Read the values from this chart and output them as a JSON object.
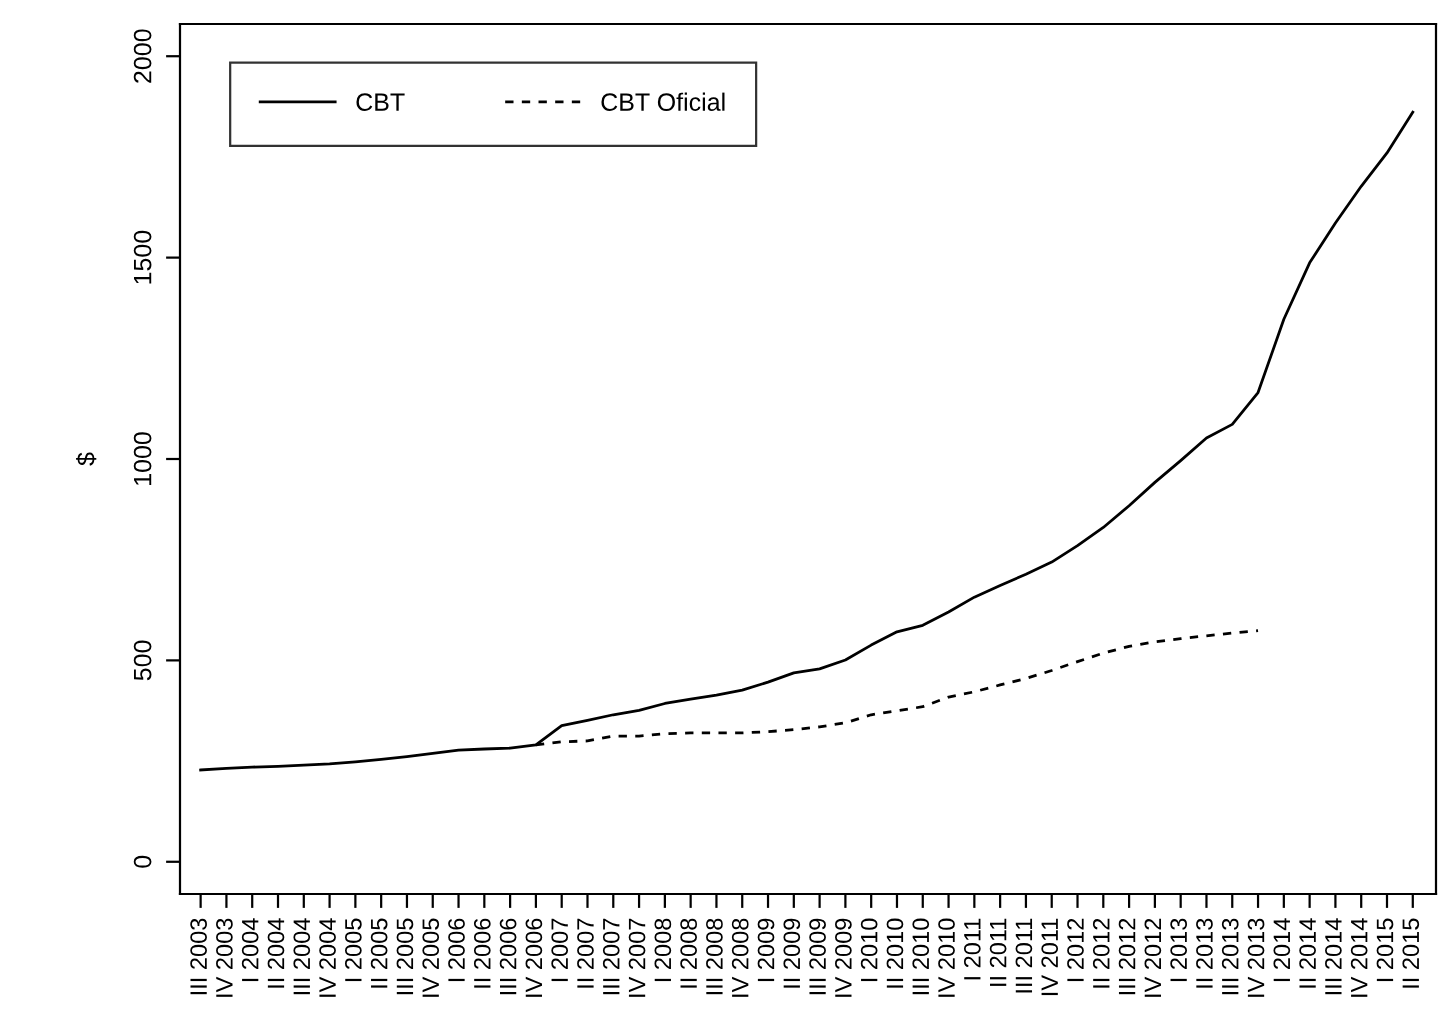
{
  "chart_data": {
    "type": "line",
    "ylabel": "$",
    "categories": [
      "III 2003",
      "IV 2003",
      "I 2004",
      "II 2004",
      "III 2004",
      "IV 2004",
      "I 2005",
      "II 2005",
      "III 2005",
      "IV 2005",
      "I 2006",
      "II 2006",
      "III 2006",
      "IV 2006",
      "I 2007",
      "II 2007",
      "III 2007",
      "IV 2007",
      "I 2008",
      "II 2008",
      "III 2008",
      "IV 2008",
      "I 2009",
      "II 2009",
      "III 2009",
      "IV 2009",
      "I 2010",
      "II 2010",
      "III 2010",
      "IV 2010",
      "I 2011",
      "II 2011",
      "III 2011",
      "IV 2011",
      "I 2012",
      "II 2012",
      "III 2012",
      "IV 2012",
      "I 2013",
      "II 2013",
      "III 2013",
      "IV 2013",
      "I 2014",
      "II 2014",
      "III 2014",
      "IV 2014",
      "I 2015",
      "II 2015"
    ],
    "series": [
      {
        "name": "CBT",
        "color": "#000000",
        "line_style": "solid",
        "values": [
          228,
          232,
          235,
          237,
          240,
          243,
          248,
          254,
          261,
          269,
          277,
          280,
          282,
          290,
          338,
          351,
          365,
          376,
          393,
          404,
          414,
          426,
          446,
          469,
          479,
          501,
          538,
          571,
          587,
          620,
          657,
          686,
          714,
          744,
          785,
          830,
          884,
          942,
          996,
          1052,
          1086,
          1165,
          1347,
          1487,
          1586,
          1677,
          1760,
          1861
        ]
      },
      {
        "name": "CBT Oficial",
        "color": "#000000",
        "line_style": "dashed",
        "values": [
          null,
          null,
          null,
          null,
          null,
          null,
          null,
          null,
          null,
          null,
          null,
          null,
          null,
          290,
          298,
          300,
          312,
          312,
          318,
          320,
          320,
          320,
          323,
          328,
          335,
          345,
          365,
          375,
          385,
          409,
          422,
          439,
          455,
          475,
          497,
          518,
          535,
          546,
          554,
          561,
          568,
          574,
          null,
          null,
          null,
          null,
          null,
          null
        ]
      }
    ],
    "ylim": [
      -80,
      2080
    ],
    "yticks": [
      0,
      500,
      1000,
      1500,
      2000
    ],
    "grid": false,
    "legend": "top left"
  }
}
